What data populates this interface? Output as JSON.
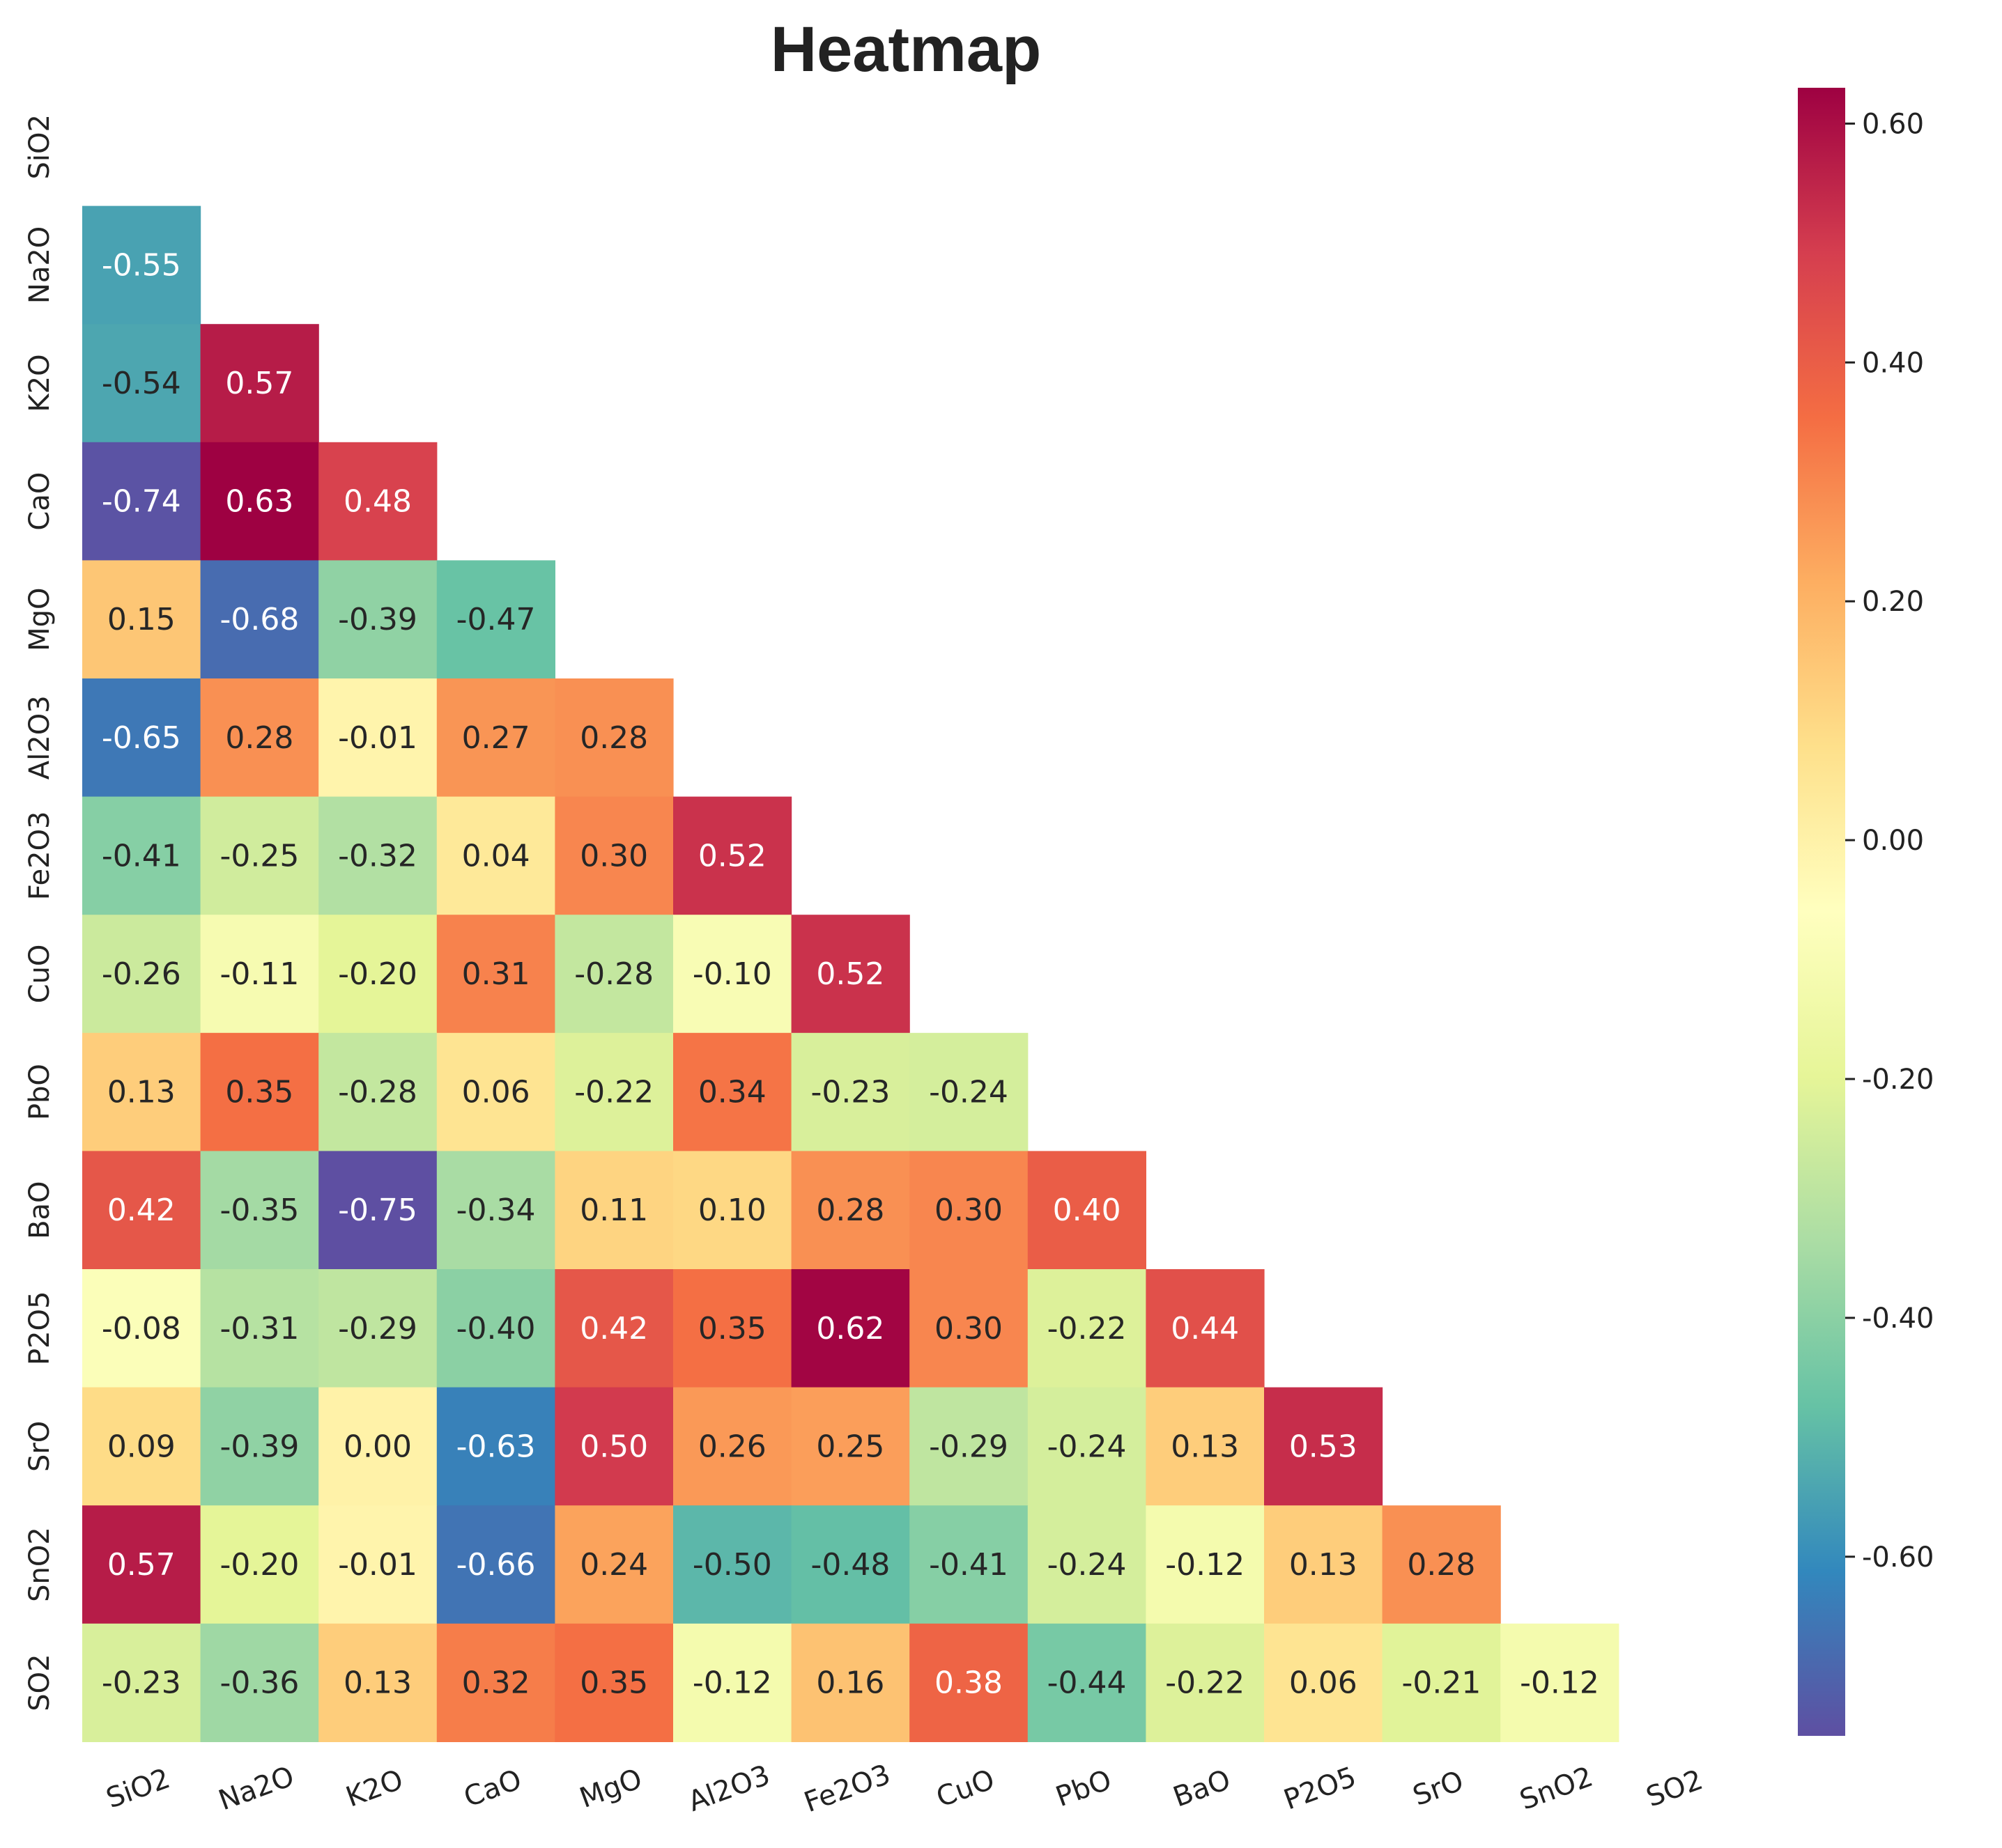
{
  "chart_data": {
    "type": "heatmap",
    "title": "Heatmap",
    "mask": "upper-triangle-including-diagonal",
    "colormap": "Spectral_r",
    "vmin": -0.75,
    "vmax": 0.63,
    "colorbar_ticks": [
      {
        "value": 0.6,
        "label": "0.60"
      },
      {
        "value": 0.4,
        "label": "0.40"
      },
      {
        "value": 0.2,
        "label": "0.20"
      },
      {
        "value": 0.0,
        "label": "0.00"
      },
      {
        "value": -0.2,
        "label": "-0.20"
      },
      {
        "value": -0.4,
        "label": "-0.40"
      },
      {
        "value": -0.6,
        "label": "-0.60"
      }
    ],
    "labels": [
      "SiO2",
      "Na2O",
      "K2O",
      "CaO",
      "MgO",
      "Al2O3",
      "Fe2O3",
      "CuO",
      "PbO",
      "BaO",
      "P2O5",
      "SrO",
      "SnO2",
      "SO2"
    ],
    "values": [
      [],
      [
        -0.55
      ],
      [
        -0.54,
        0.57
      ],
      [
        -0.74,
        0.63,
        0.48
      ],
      [
        0.15,
        -0.68,
        -0.39,
        -0.47
      ],
      [
        -0.65,
        0.28,
        -0.01,
        0.27,
        0.28
      ],
      [
        -0.41,
        -0.25,
        -0.32,
        0.04,
        0.3,
        0.52
      ],
      [
        -0.26,
        -0.11,
        -0.2,
        0.31,
        -0.28,
        -0.1,
        0.52
      ],
      [
        0.13,
        0.35,
        -0.28,
        0.06,
        -0.22,
        0.34,
        -0.23,
        -0.24
      ],
      [
        0.42,
        -0.35,
        -0.75,
        -0.34,
        0.11,
        0.1,
        0.28,
        0.3,
        0.4
      ],
      [
        -0.08,
        -0.31,
        -0.29,
        -0.4,
        0.42,
        0.35,
        0.62,
        0.3,
        -0.22,
        0.44
      ],
      [
        0.09,
        -0.39,
        0.0,
        -0.63,
        0.5,
        0.26,
        0.25,
        -0.29,
        -0.24,
        0.13,
        0.53
      ],
      [
        0.57,
        -0.2,
        -0.01,
        -0.66,
        0.24,
        -0.5,
        -0.48,
        -0.41,
        -0.24,
        -0.12,
        0.13,
        0.28
      ],
      [
        -0.23,
        -0.36,
        0.13,
        0.32,
        0.35,
        -0.12,
        0.16,
        0.38,
        -0.44,
        -0.22,
        0.06,
        -0.21,
        -0.12
      ]
    ],
    "grid": false
  }
}
